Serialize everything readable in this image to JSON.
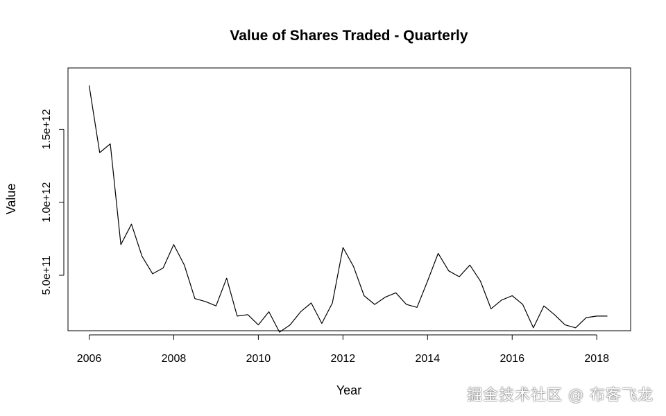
{
  "chart_data": {
    "type": "line",
    "title": "Value of Shares Traded - Quarterly",
    "xlabel": "Year",
    "ylabel": "Value",
    "xlim": [
      2005.5,
      2018.8
    ],
    "ylim": [
      120000000000,
      1920000000000
    ],
    "x_ticks": [
      2006,
      2008,
      2010,
      2012,
      2014,
      2016,
      2018
    ],
    "x_tick_labels": [
      "2006",
      "2008",
      "2010",
      "2012",
      "2014",
      "2016",
      "2018"
    ],
    "y_ticks": [
      500000000000,
      1000000000000,
      1500000000000
    ],
    "y_tick_labels": [
      "5.0e+11",
      "1.0e+12",
      "1.5e+12"
    ],
    "grid": false,
    "line_color": "#000000",
    "series": [
      {
        "x": [
          2006.0,
          2006.25,
          2006.5,
          2006.75,
          2007.0,
          2007.25,
          2007.5,
          2007.75,
          2008.0,
          2008.25,
          2008.5,
          2008.75,
          2009.0,
          2009.25,
          2009.5,
          2009.75,
          2010.0,
          2010.25,
          2010.5,
          2010.75,
          2011.0,
          2011.25,
          2011.5,
          2011.75,
          2012.0,
          2012.25,
          2012.5,
          2012.75,
          2013.0,
          2013.25,
          2013.5,
          2013.75,
          2014.0,
          2014.25,
          2014.5,
          2014.75,
          2015.0,
          2015.25,
          2015.5,
          2015.75,
          2016.0,
          2016.25,
          2016.5,
          2016.75,
          2017.0,
          2017.25,
          2017.5,
          2017.75,
          2018.0,
          2018.25
        ],
        "values": [
          1800000000000,
          1340000000000,
          1400000000000,
          710000000000,
          850000000000,
          630000000000,
          510000000000,
          550000000000,
          710000000000,
          570000000000,
          340000000000,
          320000000000,
          290000000000,
          480000000000,
          220000000000,
          230000000000,
          160000000000,
          250000000000,
          110000000000,
          160000000000,
          250000000000,
          310000000000,
          170000000000,
          310000000000,
          690000000000,
          560000000000,
          360000000000,
          300000000000,
          350000000000,
          380000000000,
          300000000000,
          280000000000,
          460000000000,
          650000000000,
          530000000000,
          490000000000,
          570000000000,
          460000000000,
          270000000000,
          330000000000,
          360000000000,
          300000000000,
          140000000000,
          290000000000,
          230000000000,
          160000000000,
          140000000000,
          210000000000,
          220000000000,
          220000000000
        ]
      }
    ]
  },
  "watermark": "掘金技术社区 @ 布客飞龙"
}
